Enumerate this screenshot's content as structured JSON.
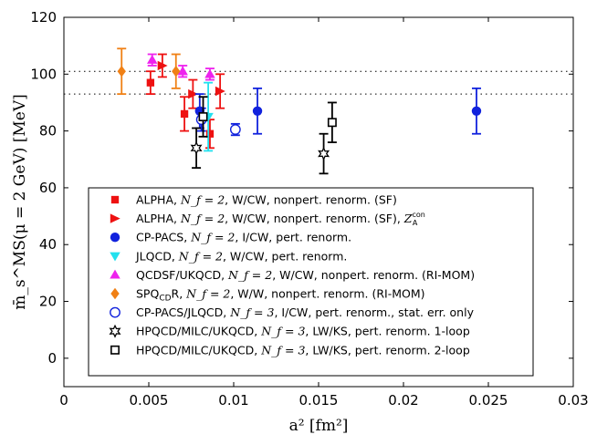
{
  "chart_data": {
    "type": "scatter",
    "xlabel": "a² [fm²]",
    "ylabel": "m̄_s^MS(μ = 2 GeV) [MeV]",
    "xlim": [
      0,
      0.03
    ],
    "ylim": [
      -10,
      120
    ],
    "x_ticks": [
      0,
      0.005,
      0.01,
      0.015,
      0.02,
      0.025,
      0.03
    ],
    "x_tick_labels": [
      "0",
      "0.005",
      "0.01",
      "0.015",
      "0.02",
      "0.025",
      "0.03"
    ],
    "y_ticks": [
      0,
      20,
      40,
      60,
      80,
      100,
      120
    ],
    "y_tick_labels": [
      "0",
      "20",
      "40",
      "60",
      "80",
      "100",
      "120"
    ],
    "reference_lines": [
      101,
      93
    ],
    "series": [
      {
        "name": "ALPHA, N_f=2, W/CW, nonpert. renorm. (SF)",
        "legend_main": "ALPHA, ",
        "legend_math": "N_f = 2",
        "legend_rest": ", W/CW, nonpert. renorm. (SF)",
        "marker": "square",
        "color": "#ee1111",
        "filled": true,
        "points": [
          {
            "x": 0.0051,
            "y": 97,
            "err": 4
          },
          {
            "x": 0.0071,
            "y": 86,
            "err": 6
          },
          {
            "x": 0.0086,
            "y": 79,
            "err": 5
          }
        ]
      },
      {
        "name": "ALPHA, N_f=2, W/CW, nonpert. renorm. (SF), Z_A^con",
        "legend_main": "ALPHA, ",
        "legend_math": "N_f = 2",
        "legend_rest": ", W/CW, nonpert. renorm. (SF), ",
        "legend_extra": "Z",
        "legend_extra_sub": "A",
        "legend_extra_sup": "con",
        "marker": "triangle-right",
        "color": "#ee1111",
        "filled": true,
        "points": [
          {
            "x": 0.0058,
            "y": 103,
            "err": 4
          },
          {
            "x": 0.0076,
            "y": 93,
            "err": 5
          },
          {
            "x": 0.0092,
            "y": 94,
            "err": 6
          }
        ]
      },
      {
        "name": "CP-PACS, N_f=2, I/CW, pert. renorm.",
        "legend_main": "CP-PACS, ",
        "legend_math": "N_f = 2",
        "legend_rest": ", I/CW, pert. renorm.",
        "marker": "circle",
        "color": "#1122dd",
        "filled": true,
        "points": [
          {
            "x": 0.008,
            "y": 87,
            "err": 6
          },
          {
            "x": 0.0114,
            "y": 87,
            "err": 8
          },
          {
            "x": 0.0243,
            "y": 87,
            "err": 8
          }
        ]
      },
      {
        "name": "JLQCD, N_f=2, W/CW, pert. renorm.",
        "legend_main": "JLQCD, ",
        "legend_math": "N_f = 2",
        "legend_rest": ", W/CW, pert. renorm.",
        "marker": "triangle-down",
        "color": "#22e0ee",
        "filled": true,
        "points": [
          {
            "x": 0.0085,
            "y": 85,
            "err": 12
          }
        ]
      },
      {
        "name": "QCDSF/UKQCD, N_f=2, W/CW, nonpert. renorm. (RI-MOM)",
        "legend_main": "QCDSF/UKQCD, ",
        "legend_math": "N_f = 2",
        "legend_rest": ", W/CW, nonpert. renorm. (RI-MOM)",
        "marker": "triangle-up",
        "color": "#ee22ee",
        "filled": true,
        "points": [
          {
            "x": 0.0052,
            "y": 105,
            "err": 2
          },
          {
            "x": 0.007,
            "y": 101,
            "err": 2
          },
          {
            "x": 0.0086,
            "y": 100,
            "err": 2
          }
        ]
      },
      {
        "name": "SPQcdR, N_f=2, W/W, nonpert. renorm. (RI-MOM)",
        "legend_main": "SPQ",
        "legend_sub": "CD",
        "legend_main2": "R, ",
        "legend_math": "N_f = 2",
        "legend_rest": ", W/W, nonpert. renorm. (RI-MOM)",
        "marker": "diamond",
        "color": "#f08015",
        "filled": true,
        "points": [
          {
            "x": 0.0034,
            "y": 101,
            "err": 8
          },
          {
            "x": 0.0066,
            "y": 101,
            "err": 6
          }
        ]
      },
      {
        "name": "CP-PACS/JLQCD, N_f=3, I/CW, pert. renorm., stat. err. only",
        "legend_main": "CP-PACS/JLQCD, ",
        "legend_math": "N_f = 3",
        "legend_rest": ", I/CW, pert. renorm., stat. err. only",
        "marker": "circle",
        "color": "#1122dd",
        "filled": false,
        "points": [
          {
            "x": 0.0081,
            "y": 84,
            "err": 4
          },
          {
            "x": 0.0101,
            "y": 80.5,
            "err": 2
          }
        ]
      },
      {
        "name": "HPQCD/MILC/UKQCD, N_f=3, LW/KS, pert. renorm. 1-loop",
        "legend_main": "HPQCD/MILC/UKQCD, ",
        "legend_math": "N_f = 3",
        "legend_rest": ", LW/KS, pert. renorm. 1-loop",
        "marker": "star",
        "color": "#000000",
        "filled": false,
        "points": [
          {
            "x": 0.0078,
            "y": 74,
            "err": 7
          },
          {
            "x": 0.0153,
            "y": 72,
            "err": 7
          }
        ]
      },
      {
        "name": "HPQCD/MILC/UKQCD, N_f=3, LW/KS, pert. renorm. 2-loop",
        "legend_main": "HPQCD/MILC/UKQCD, ",
        "legend_math": "N_f = 3",
        "legend_rest": ", LW/KS, pert. renorm. 2-loop",
        "marker": "square",
        "color": "#000000",
        "filled": false,
        "points": [
          {
            "x": 0.0082,
            "y": 85,
            "err": 7
          },
          {
            "x": 0.0158,
            "y": 83,
            "err": 7
          }
        ]
      }
    ]
  }
}
